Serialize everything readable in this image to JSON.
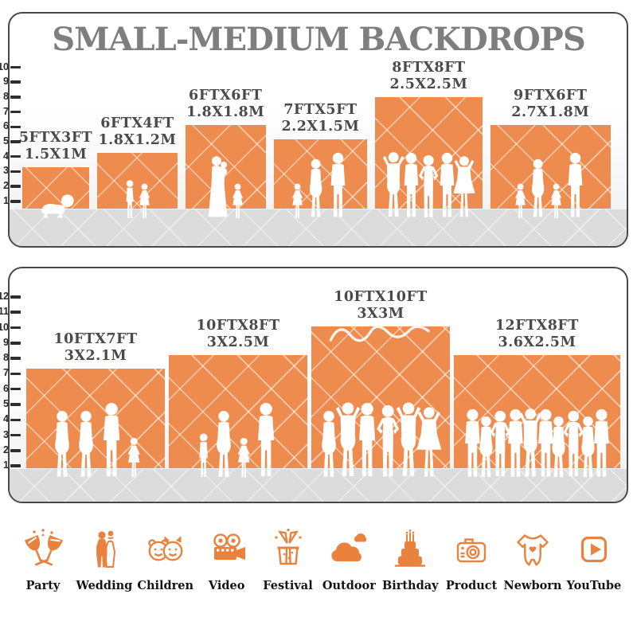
{
  "title": "SMALL-MEDIUM BACKDROPS",
  "accent_color": "#ED8C4E",
  "icon_color": "#E8823C",
  "panels": [
    {
      "name": "small-medium-backdrops",
      "ruler_max": 10,
      "items": [
        {
          "size_ft": "5FTX3FT",
          "size_m": "1.5X1M",
          "w_ft": 5,
          "h_ft": 3,
          "figures": [
            "baby"
          ]
        },
        {
          "size_ft": "6FTX4FT",
          "size_m": "1.8X1.2M",
          "w_ft": 6,
          "h_ft": 4,
          "figures": [
            "boy",
            "girl"
          ]
        },
        {
          "size_ft": "6FTX6FT",
          "size_m": "1.8X1.8M",
          "w_ft": 6,
          "h_ft": 6,
          "figures": [
            "woman-holding-baby",
            "girl"
          ]
        },
        {
          "size_ft": "7FTX5FT",
          "size_m": "2.2X1.5M",
          "w_ft": 7,
          "h_ft": 5,
          "figures": [
            "girl",
            "woman",
            "man"
          ]
        },
        {
          "size_ft": "8FTX8FT",
          "size_m": "2.5X2.5M",
          "w_ft": 8,
          "h_ft": 8,
          "figures": [
            "woman-arms-up",
            "man",
            "man-hands-on-hips",
            "man",
            "woman-dress"
          ]
        },
        {
          "size_ft": "9FTX6FT",
          "size_m": "2.7X1.8M",
          "w_ft": 9,
          "h_ft": 6,
          "figures": [
            "girl",
            "woman",
            "girl",
            "man"
          ]
        }
      ]
    },
    {
      "name": "medium-large-backdrops",
      "ruler_max": 12,
      "items": [
        {
          "size_ft": "10FTX7FT",
          "size_m": "3X2.1M",
          "w_ft": 10,
          "h_ft": 7,
          "figures": [
            "woman",
            "woman",
            "man",
            "girl"
          ]
        },
        {
          "size_ft": "10FTX8FT",
          "size_m": "3X2.5M",
          "w_ft": 10,
          "h_ft": 8,
          "figures": [
            "boy",
            "woman",
            "girl",
            "man"
          ]
        },
        {
          "size_ft": "10FTX10FT",
          "size_m": "3X3M",
          "w_ft": 10,
          "h_ft": 10,
          "decor_script": true,
          "figures": [
            "woman",
            "woman-arms-up",
            "man",
            "man-hands-on-hips",
            "woman-arms-up",
            "woman-dress"
          ]
        },
        {
          "size_ft": "12FTX8FT",
          "size_m": "3.6X2.5M",
          "w_ft": 12,
          "h_ft": 8,
          "figures": [
            "man",
            "woman",
            "man-hands-on-hips",
            "man",
            "woman-arms-up",
            "man",
            "woman",
            "man-hands-on-hips",
            "woman",
            "man"
          ]
        }
      ]
    }
  ],
  "categories": [
    {
      "label": "Party",
      "icon": "party-icon"
    },
    {
      "label": "Wedding",
      "icon": "wedding-icon"
    },
    {
      "label": "Children",
      "icon": "children-icon"
    },
    {
      "label": "Video",
      "icon": "video-icon"
    },
    {
      "label": "Festival",
      "icon": "festival-icon"
    },
    {
      "label": "Outdoor",
      "icon": "outdoor-icon"
    },
    {
      "label": "Birthday",
      "icon": "birthday-icon"
    },
    {
      "label": "Product",
      "icon": "product-icon"
    },
    {
      "label": "Newborn",
      "icon": "newborn-icon"
    },
    {
      "label": "YouTube",
      "icon": "youtube-icon"
    }
  ]
}
